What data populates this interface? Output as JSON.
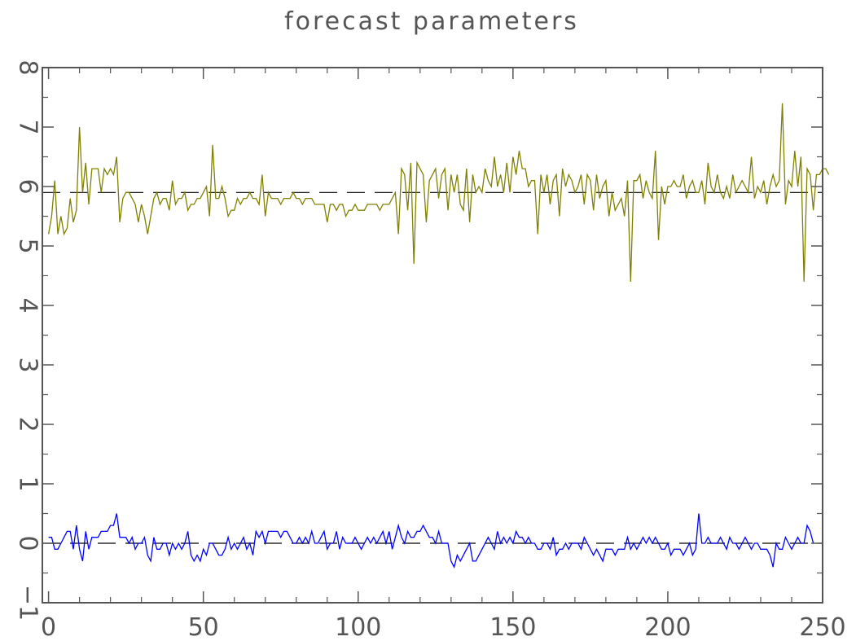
{
  "chart_data": {
    "type": "line",
    "title": "forecast parameters",
    "xlabel": "",
    "ylabel": "",
    "xlim": [
      -2,
      250
    ],
    "ylim": [
      -1,
      8
    ],
    "x_ticks": [
      0,
      50,
      100,
      150,
      200,
      250
    ],
    "x_tick_labels": [
      "0",
      "50",
      "100",
      "150",
      "200",
      "250"
    ],
    "y_ticks": [
      -1,
      0,
      1,
      2,
      3,
      4,
      5,
      6,
      7,
      8
    ],
    "y_tick_labels": [
      "−1",
      "0",
      "1",
      "2",
      "3",
      "4",
      "5",
      "6",
      "7",
      "8"
    ],
    "grid": false,
    "colors": {
      "upper": "#808000",
      "lower": "#0000ff",
      "reference": "#000000",
      "axes": "#555555"
    },
    "reference_lines": [
      {
        "y": 5.9,
        "style": "dashed"
      },
      {
        "y": 0.0,
        "style": "dashed"
      }
    ],
    "series": [
      {
        "x_start": 0,
        "x_step": 1,
        "values": [
          5.2,
          5.5,
          6.1,
          5.2,
          5.5,
          5.2,
          5.3,
          5.8,
          5.4,
          5.6,
          7.0,
          5.9,
          6.4,
          5.7,
          6.3,
          6.3,
          6.3,
          5.9,
          6.3,
          6.2,
          6.3,
          6.2,
          6.5,
          5.4,
          5.8,
          5.9,
          5.9,
          5.8,
          5.7,
          5.4,
          5.7,
          5.5,
          5.2,
          5.5,
          5.8,
          5.9,
          5.7,
          5.8,
          5.8,
          5.6,
          6.1,
          5.7,
          5.8,
          5.8,
          5.9,
          5.6,
          5.7,
          5.7,
          5.8,
          5.8,
          5.9,
          6.0,
          5.5,
          6.7,
          5.8,
          5.8,
          6.0,
          5.8,
          5.5,
          5.6,
          5.6,
          5.8,
          5.7,
          5.8,
          5.8,
          5.9,
          5.8,
          5.8,
          5.7,
          6.2,
          5.5,
          5.9,
          5.8,
          5.8,
          5.8,
          5.7,
          5.8,
          5.8,
          5.8,
          5.9,
          5.8,
          5.8,
          5.7,
          5.8,
          5.8,
          5.8,
          5.7,
          5.7,
          5.7,
          5.7,
          5.4,
          5.7,
          5.7,
          5.6,
          5.7,
          5.7,
          5.5,
          5.6,
          5.6,
          5.7,
          5.6,
          5.6,
          5.6,
          5.7,
          5.7,
          5.7,
          5.7,
          5.6,
          5.7,
          5.7,
          5.7,
          5.8,
          5.9,
          5.2,
          6.3,
          6.2,
          5.6,
          6.4,
          4.7,
          6.4,
          6.3,
          6.2,
          5.4,
          6.1,
          6.2,
          6.3,
          5.8,
          6.2,
          6.3,
          5.6,
          6.2,
          5.9,
          6.2,
          5.7,
          5.6,
          6.3,
          5.4,
          6.2,
          5.9,
          6.0,
          5.9,
          6.3,
          6.1,
          6.0,
          6.5,
          6.0,
          6.2,
          5.9,
          6.4,
          5.9,
          6.5,
          6.2,
          6.6,
          6.3,
          6.3,
          6.0,
          6.1,
          6.1,
          5.2,
          6.2,
          5.9,
          6.2,
          5.7,
          6.1,
          6.2,
          5.5,
          6.3,
          6.0,
          6.2,
          6.1,
          5.9,
          6.0,
          6.2,
          5.7,
          6.2,
          6.1,
          5.6,
          6.2,
          5.8,
          6.0,
          6.1,
          5.5,
          5.9,
          5.6,
          5.7,
          5.8,
          5.5,
          6.1,
          4.4,
          6.1,
          6.1,
          6.2,
          5.8,
          6.1,
          5.9,
          5.8,
          6.6,
          5.1,
          6.0,
          5.7,
          6.0,
          6.0,
          6.1,
          6.0,
          6.0,
          6.2,
          5.8,
          6.0,
          6.1,
          5.9,
          5.9,
          6.1,
          5.7,
          6.4,
          6.0,
          5.9,
          6.2,
          5.9,
          5.8,
          6.0,
          5.8,
          6.2,
          5.9,
          6.0,
          6.1,
          6.0,
          5.9,
          6.5,
          5.8,
          6.0,
          5.9,
          6.1,
          5.7,
          6.0,
          6.2,
          6.0,
          6.1,
          7.4,
          5.7,
          6.1,
          6.0,
          6.6,
          6.0,
          6.5,
          4.4,
          6.3,
          6.2,
          5.6,
          6.2,
          6.2,
          6.3,
          6.3,
          6.2
        ]
      },
      {
        "x_start": 0,
        "x_step": 1,
        "values": [
          0.1,
          0.1,
          -0.1,
          -0.1,
          0.0,
          0.1,
          0.2,
          0.2,
          -0.1,
          0.3,
          -0.1,
          -0.3,
          0.2,
          -0.1,
          0.1,
          0.1,
          0.1,
          0.2,
          0.2,
          0.2,
          0.3,
          0.3,
          0.5,
          0.1,
          0.1,
          0.1,
          0.0,
          0.1,
          -0.1,
          0.0,
          0.0,
          0.1,
          -0.2,
          -0.3,
          0.1,
          -0.1,
          -0.1,
          0.0,
          0.0,
          -0.2,
          0.0,
          -0.1,
          0.0,
          -0.1,
          0.0,
          0.2,
          -0.2,
          -0.3,
          -0.2,
          -0.3,
          -0.1,
          -0.2,
          0.0,
          0.0,
          -0.1,
          -0.2,
          -0.2,
          -0.1,
          0.1,
          -0.1,
          0.0,
          -0.1,
          0.0,
          0.1,
          -0.1,
          0.0,
          -0.2,
          0.2,
          0.1,
          0.2,
          0.0,
          0.2,
          0.2,
          0.2,
          0.2,
          0.1,
          0.2,
          0.2,
          0.1,
          0.0,
          0.0,
          0.1,
          0.0,
          0.1,
          0.0,
          0.2,
          0.0,
          0.0,
          0.1,
          0.2,
          -0.1,
          0.0,
          0.0,
          0.2,
          -0.1,
          0.1,
          0.0,
          0.0,
          0.0,
          0.1,
          0.0,
          -0.1,
          0.0,
          0.1,
          0.0,
          0.1,
          0.0,
          0.1,
          0.2,
          0.0,
          0.2,
          -0.1,
          0.1,
          0.3,
          0.1,
          0.0,
          0.2,
          0.1,
          0.1,
          0.2,
          0.2,
          0.3,
          0.2,
          0.1,
          0.1,
          0.0,
          0.2,
          0.0,
          0.0,
          0.0,
          -0.3,
          -0.4,
          -0.2,
          -0.3,
          -0.2,
          -0.1,
          0.0,
          -0.3,
          -0.3,
          -0.2,
          -0.1,
          0.0,
          0.1,
          0.0,
          -0.1,
          0.2,
          0.0,
          0.1,
          0.0,
          0.1,
          0.0,
          0.2,
          0.1,
          0.1,
          0.0,
          0.1,
          0.0,
          0.0,
          -0.1,
          -0.1,
          0.0,
          0.0,
          -0.1,
          0.1,
          -0.2,
          -0.1,
          -0.1,
          0.0,
          -0.1,
          0.0,
          0.0,
          0.0,
          -0.1,
          0.1,
          0.0,
          -0.1,
          -0.2,
          -0.1,
          -0.2,
          -0.3,
          -0.1,
          -0.1,
          -0.1,
          -0.2,
          -0.1,
          -0.1,
          -0.1,
          0.1,
          -0.1,
          0.0,
          -0.1,
          0.0,
          0.1,
          0.0,
          0.1,
          0.0,
          0.1,
          0.0,
          -0.1,
          -0.1,
          0.0,
          -0.2,
          -0.1,
          -0.1,
          -0.1,
          -0.2,
          -0.1,
          0.0,
          -0.2,
          -0.1,
          0.5,
          0.0,
          0.0,
          0.1,
          0.0,
          0.0,
          0.0,
          0.1,
          0.0,
          -0.1,
          0.1,
          0.0,
          0.0,
          -0.1,
          0.0,
          0.1,
          0.0,
          -0.1,
          0.0,
          0.0,
          -0.1,
          -0.1,
          -0.1,
          -0.2,
          -0.4,
          0.0,
          -0.1,
          -0.1,
          0.1,
          0.0,
          -0.1,
          0.0,
          0.1,
          0.0,
          0.0,
          0.3,
          0.2,
          0.0
        ]
      }
    ]
  }
}
